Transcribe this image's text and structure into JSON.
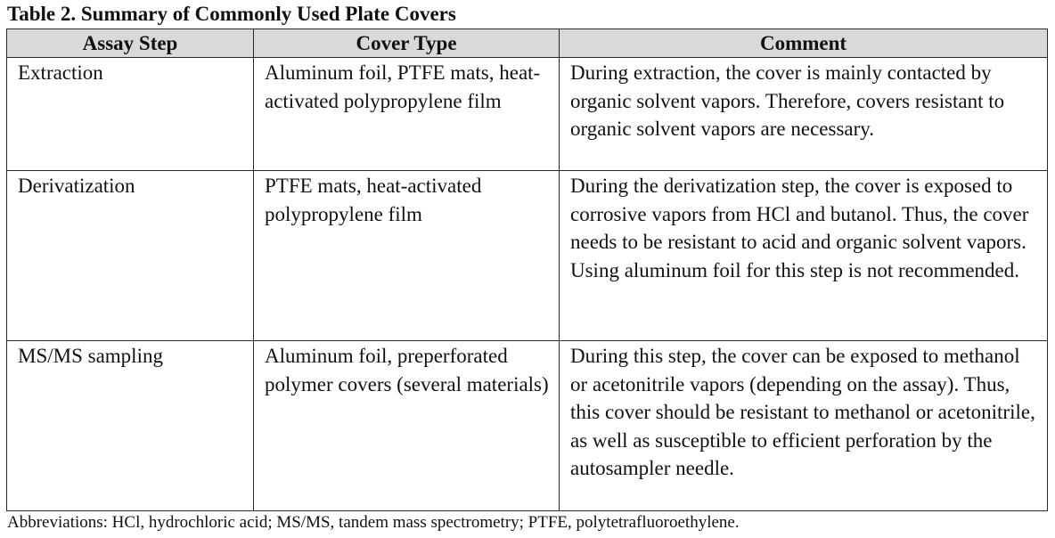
{
  "caption": "Table 2. Summary of Commonly Used Plate Covers",
  "headers": [
    "Assay Step",
    "Cover Type",
    "Comment"
  ],
  "rows": [
    {
      "step": "Extraction",
      "cover": "Aluminum foil, PTFE mats, heat-activated polypropylene film",
      "comment": "During extraction, the cover is mainly contacted by organic solvent vapors. Therefore, covers resistant to organic solvent vapors are necessary."
    },
    {
      "step": "Derivatization",
      "cover": "PTFE mats, heat-activated polypropylene film",
      "comment": "During the derivatization step, the cover is exposed to corrosive vapors from HCl and butanol. Thus, the cover needs to be resistant to acid and organic solvent vapors. Using aluminum foil for this step is not recommended."
    },
    {
      "step": "MS/MS sampling",
      "cover": "Aluminum foil, preperforated polymer covers (several materials)",
      "comment": "During this step, the cover can be exposed to methanol or acetonitrile vapors (depending on the assay). Thus, this cover should be resistant to methanol or acetonitrile, as well as susceptible to efficient perforation by the autosampler needle."
    }
  ],
  "footnote": "Abbreviations: HCl, hydrochloric acid; MS/MS, tandem mass spectrometry; PTFE, polytetrafluoroethylene."
}
